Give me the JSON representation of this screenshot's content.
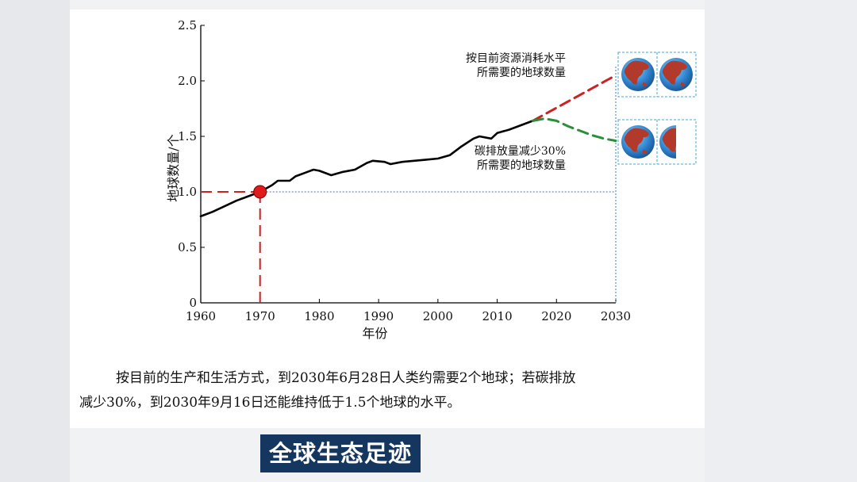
{
  "chart_data": {
    "type": "line",
    "xlabel": "年份",
    "ylabel": "地球数量/个",
    "xlim": [
      1960,
      2030
    ],
    "ylim": [
      0,
      2.5
    ],
    "x_ticks": [
      1960,
      1970,
      1980,
      1990,
      2000,
      2010,
      2020,
      2030
    ],
    "y_ticks": [
      0,
      0.5,
      1.0,
      1.5,
      2.0,
      2.5
    ],
    "y_tick_labels": [
      "0",
      "0.5",
      "1.0",
      "1.5",
      "2.0",
      "2.5"
    ],
    "series": [
      {
        "style": "solid",
        "color": "#000000",
        "x": [
          1960,
          1962,
          1964,
          1966,
          1968,
          1970,
          1972,
          1973,
          1975,
          1976,
          1978,
          1979,
          1980,
          1982,
          1984,
          1986,
          1988,
          1989,
          1991,
          1992,
          1994,
          1996,
          1998,
          2000,
          2002,
          2004,
          2006,
          2007,
          2009,
          2010,
          2012,
          2014,
          2016
        ],
        "y": [
          0.78,
          0.82,
          0.87,
          0.92,
          0.96,
          1.0,
          1.06,
          1.1,
          1.1,
          1.14,
          1.18,
          1.2,
          1.19,
          1.15,
          1.18,
          1.2,
          1.26,
          1.28,
          1.27,
          1.25,
          1.27,
          1.28,
          1.29,
          1.3,
          1.33,
          1.41,
          1.48,
          1.5,
          1.48,
          1.53,
          1.56,
          1.6,
          1.64
        ]
      },
      {
        "style": "dashed",
        "color": "#cc2222",
        "x": [
          2016,
          2030
        ],
        "y": [
          1.64,
          2.05
        ]
      },
      {
        "style": "dashed",
        "color": "#2a8f3a",
        "x": [
          2016,
          2018,
          2020,
          2022,
          2024,
          2026,
          2028,
          2030
        ],
        "y": [
          1.64,
          1.66,
          1.64,
          1.59,
          1.55,
          1.51,
          1.48,
          1.46
        ]
      }
    ],
    "marker": {
      "x": 1970,
      "y": 1.0,
      "color": "#e01b1b"
    },
    "reference_lines": [
      {
        "type": "horizontal",
        "y": 1.0,
        "style": "dotted",
        "color": "#3a78c9",
        "from_x": 1970,
        "to_x": 2030
      },
      {
        "type": "vertical",
        "x": 2030,
        "style": "dotted",
        "color": "#3a78c9"
      }
    ],
    "annotations": [
      {
        "lines": [
          "按目前资源消耗水平",
          "所需要的地球数量"
        ],
        "target_value": 2
      },
      {
        "lines": [
          "碳排放量减少30%",
          "所需要的地球数量"
        ],
        "target_value": 1.5
      }
    ],
    "globe_icons": [
      {
        "name": "globe-icon",
        "count": 2,
        "row": 1
      },
      {
        "name": "globe-icon",
        "count": 1.5,
        "row": 2
      }
    ]
  },
  "caption": {
    "line1": "按目前的生产和生活方式，到2030年6月28日人类约需要2个地球；若碳排放",
    "line2": "减少30%，到2030年9月16日还能维持低于1.5个地球的水平。"
  },
  "banner": {
    "title": "全球生态足迹"
  },
  "colors": {
    "banner_bg": "#14365f",
    "page_bg": "#f1f2f4",
    "ocean": "#2f86d0",
    "land": "#b23a2a"
  }
}
